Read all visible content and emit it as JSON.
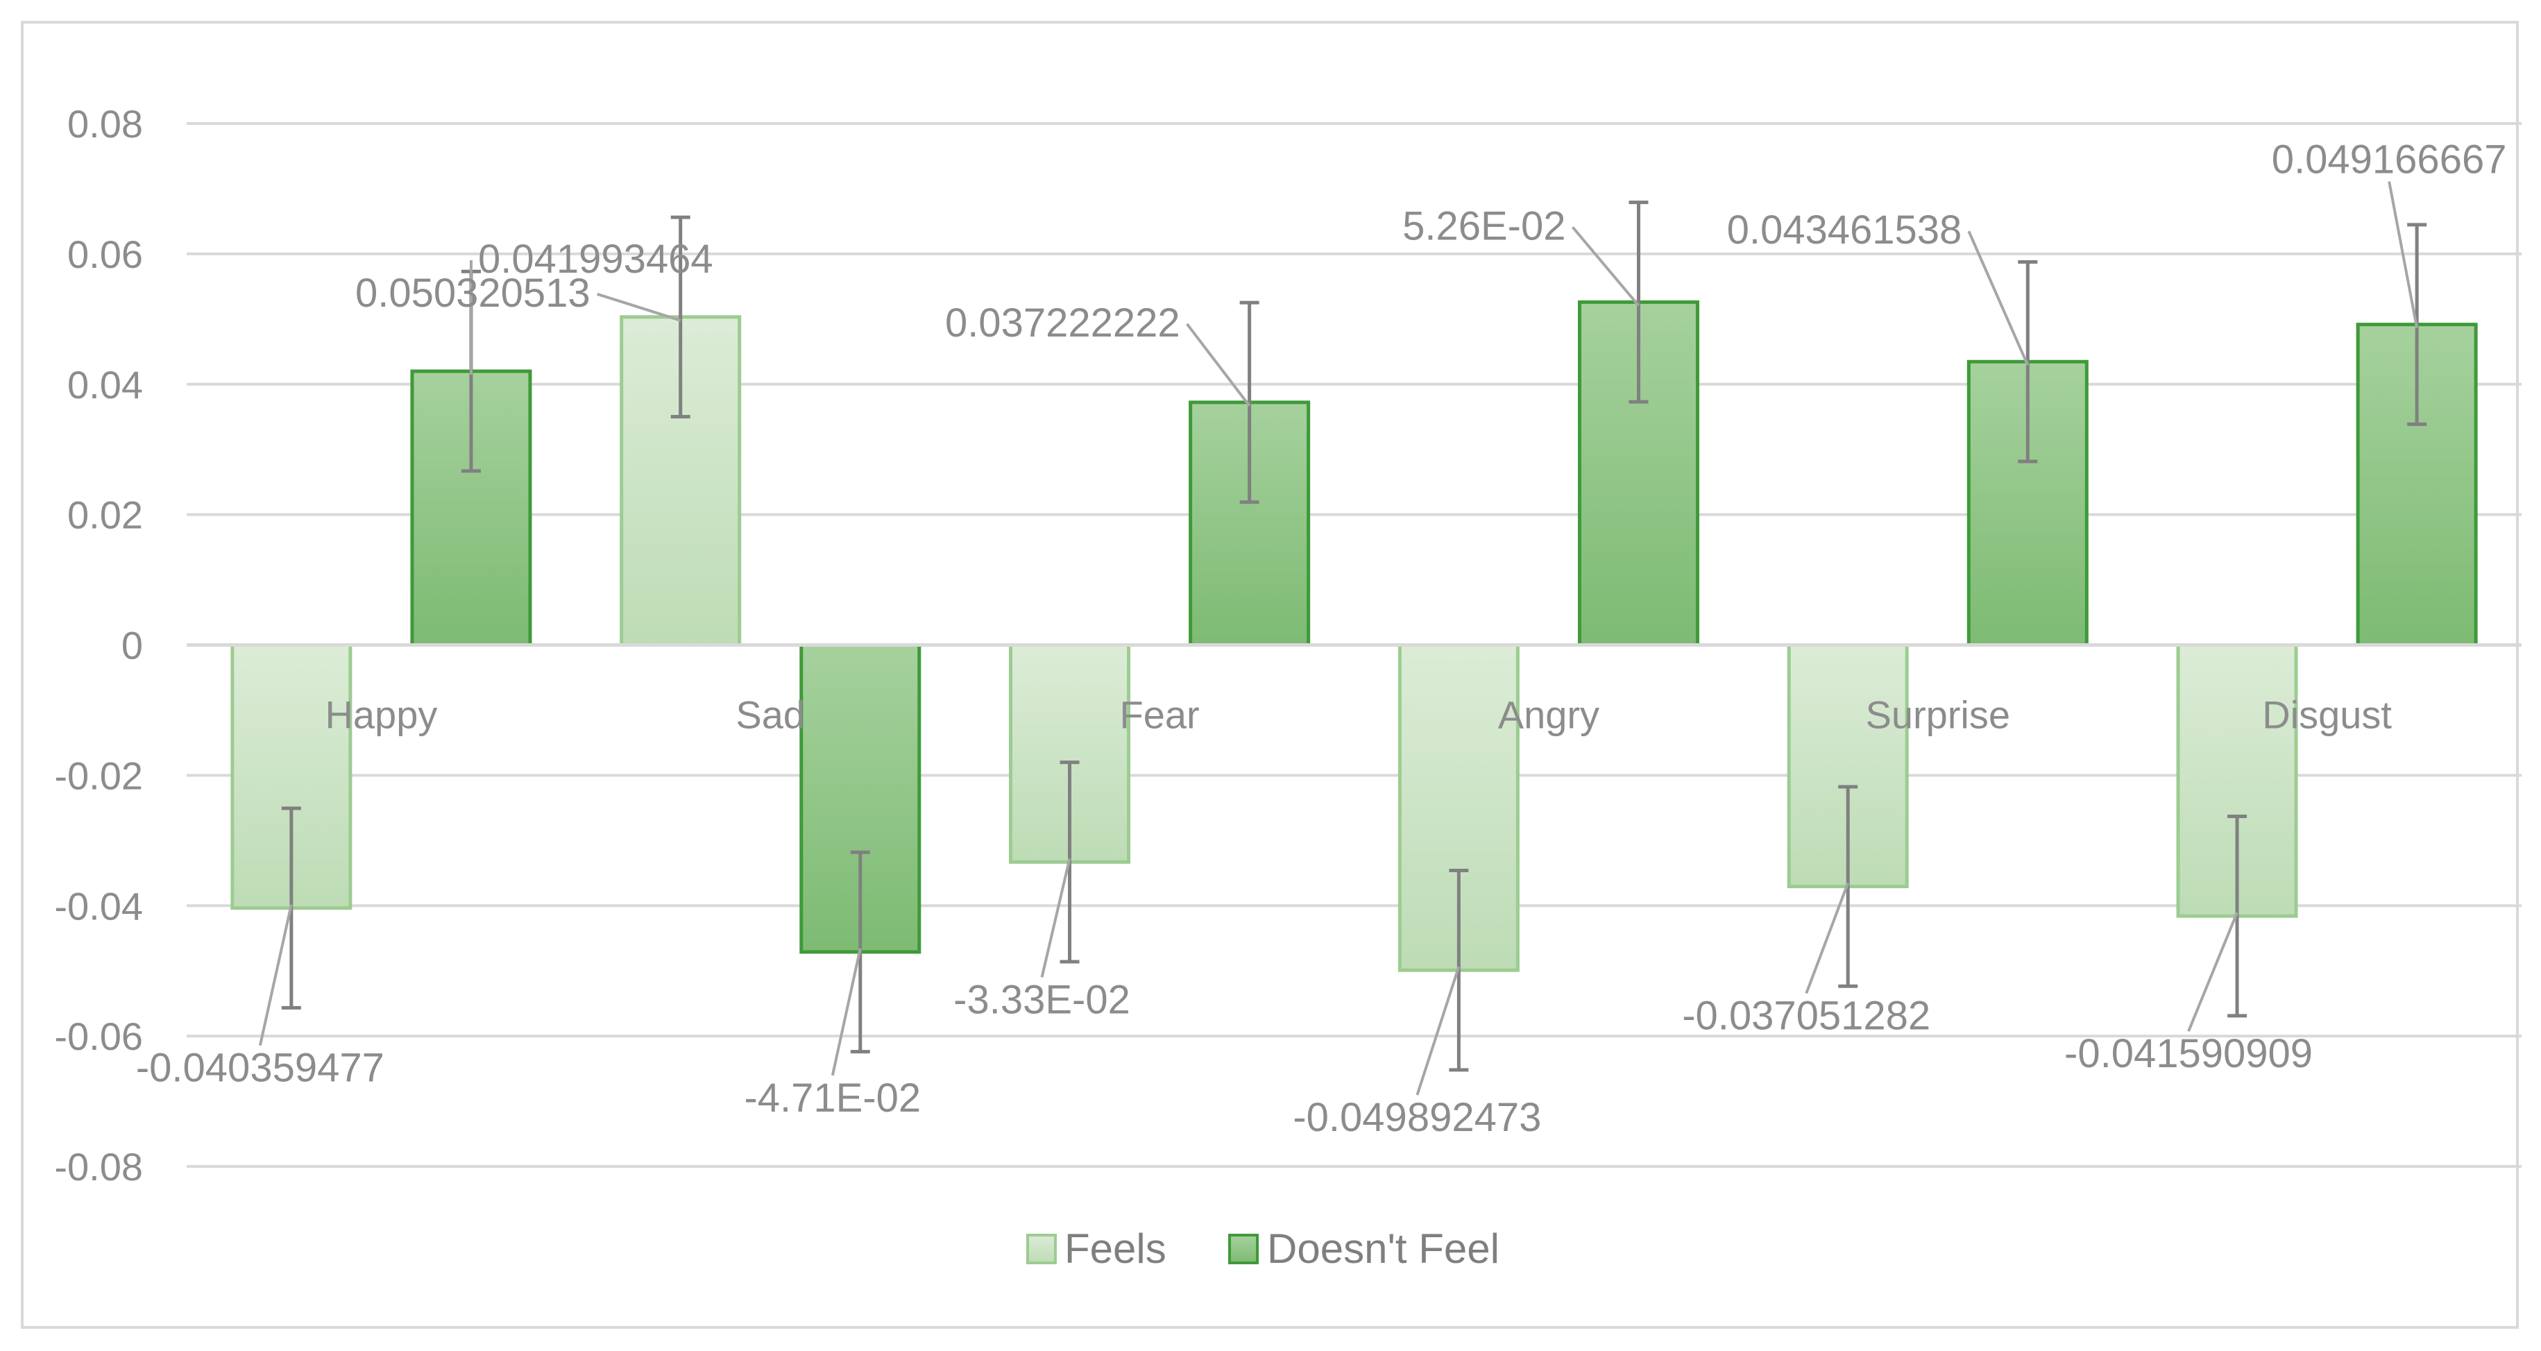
{
  "chart_data": {
    "type": "bar",
    "categories": [
      "Happy",
      "Sad",
      "Fear",
      "Angry",
      "Surprise",
      "Disgust"
    ],
    "series": [
      {
        "name": "Feels",
        "values": [
          -0.040359477,
          0.050320513,
          -0.0333,
          -0.049892473,
          -0.037051282,
          -0.041590909
        ],
        "labels": [
          "-0.040359477",
          "0.050320513",
          "-3.33E-02",
          "-0.049892473",
          "-0.037051282",
          "-0.041590909"
        ],
        "error": 0.0153,
        "color": "#c7e2c0",
        "stroke": "#9ccc91"
      },
      {
        "name": "Doesn't Feel",
        "values": [
          0.041993464,
          -0.0471,
          0.037222222,
          0.0526,
          0.043461538,
          0.049166667
        ],
        "labels": [
          "0.041993464",
          "-4.71E-02",
          "0.037222222",
          "5.26E-02",
          "0.043461538",
          "0.049166667"
        ],
        "error": 0.0153,
        "color": "#8cc383",
        "stroke": "#3f9a3a"
      }
    ],
    "ylim": [
      -0.08,
      0.08
    ],
    "yticks": [
      0.08,
      0.06,
      0.04,
      0.02,
      0,
      -0.02,
      -0.04,
      -0.06,
      -0.08
    ],
    "ytick_labels": [
      "0.08",
      "0.06",
      "0.04",
      "0.02",
      "0",
      "-0.02",
      "-0.04",
      "-0.06",
      "-0.08"
    ],
    "grid": true,
    "legend_position": "bottom",
    "title": "",
    "xlabel": "",
    "ylabel": ""
  }
}
